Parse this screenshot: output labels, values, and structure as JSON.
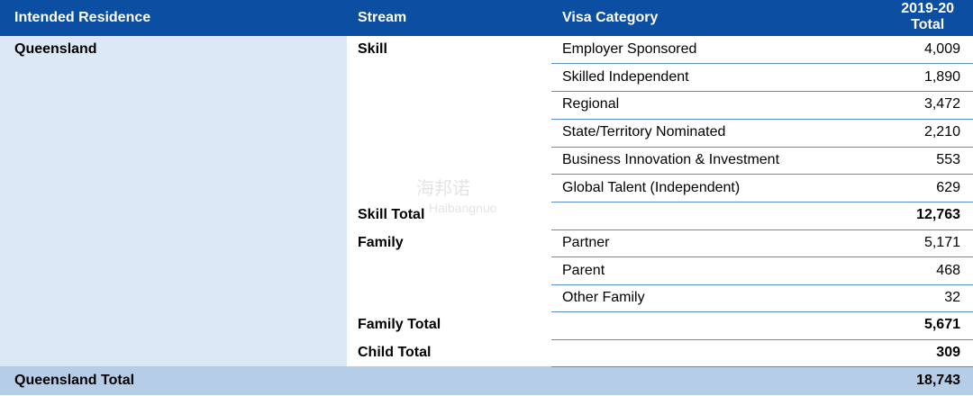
{
  "header": {
    "intended_residence": "Intended Residence",
    "stream": "Stream",
    "visa_category": "Visa Category",
    "year": "2019-20",
    "total": "Total"
  },
  "residence": "Queensland",
  "skill": {
    "label": "Skill",
    "rows": [
      {
        "category": "Employer Sponsored",
        "value": "4,009"
      },
      {
        "category": "Skilled Independent",
        "value": "1,890"
      },
      {
        "category": "Regional",
        "value": "3,472"
      },
      {
        "category": "State/Territory Nominated",
        "value": "2,210"
      },
      {
        "category": "Business Innovation & Investment",
        "value": "553"
      },
      {
        "category": "Global Talent (Independent)",
        "value": "629"
      }
    ],
    "total_label": "Skill Total",
    "total_value": "12,763"
  },
  "family": {
    "label": "Family",
    "rows": [
      {
        "category": "Partner",
        "value": "5,171"
      },
      {
        "category": "Parent",
        "value": "468"
      },
      {
        "category": "Other Family",
        "value": "32"
      }
    ],
    "total_label": "Family Total",
    "total_value": "5,671"
  },
  "child": {
    "total_label": "Child Total",
    "total_value": "309"
  },
  "grand_total": {
    "label": "Queensland Total",
    "value": "18,743"
  },
  "watermark": {
    "chinese": "海邦诺",
    "latin": "Haibangnuo"
  }
}
